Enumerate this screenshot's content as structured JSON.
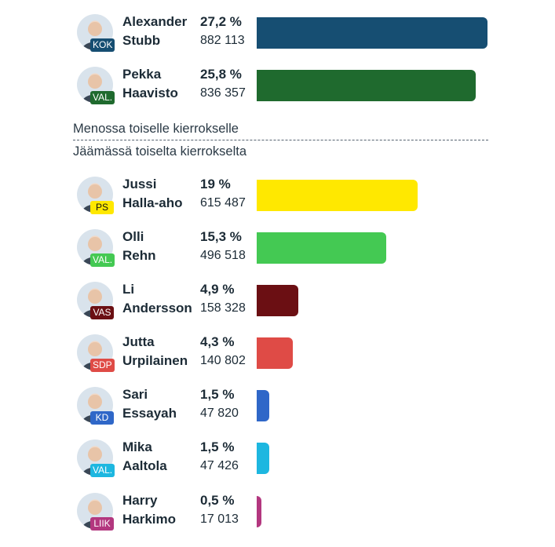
{
  "chart_data": {
    "type": "bar",
    "orientation": "horizontal",
    "max_value": 27.2,
    "rows": [
      {
        "first": "Alexander",
        "last": "Stubb",
        "party": "KOK",
        "party_color": "#164e72",
        "pct": 27.2,
        "pct_label": "27,2 %",
        "votes": "882 113"
      },
      {
        "first": "Pekka",
        "last": "Haavisto",
        "party": "VAL.",
        "party_color": "#1f6a2e",
        "pct": 25.8,
        "pct_label": "25,8 %",
        "votes": "836 357"
      },
      {
        "first": "Jussi",
        "last": "Halla-aho",
        "party": "PS",
        "party_color": "#ffe800",
        "pct": 19,
        "pct_label": "19 %",
        "votes": "615 487"
      },
      {
        "first": "Olli",
        "last": "Rehn",
        "party": "VAL.",
        "party_color": "#44c953",
        "pct": 15.3,
        "pct_label": "15,3 %",
        "votes": "496 518"
      },
      {
        "first": "Li",
        "last": "Andersson",
        "party": "VAS",
        "party_color": "#6b0f13",
        "pct": 4.9,
        "pct_label": "4,9 %",
        "votes": "158 328"
      },
      {
        "first": "Jutta",
        "last": "Urpilainen",
        "party": "SDP",
        "party_color": "#df4b46",
        "pct": 4.3,
        "pct_label": "4,3 %",
        "votes": "140 802"
      },
      {
        "first": "Sari",
        "last": "Essayah",
        "party": "KD",
        "party_color": "#2f67c8",
        "pct": 1.5,
        "pct_label": "1,5 %",
        "votes": "47 820"
      },
      {
        "first": "Mika",
        "last": "Aaltola",
        "party": "VAL.",
        "party_color": "#1db7e0",
        "pct": 1.5,
        "pct_label": "1,5 %",
        "votes": "47 426"
      },
      {
        "first": "Harry",
        "last": "Harkimo",
        "party": "LIIK",
        "party_color": "#b3377f",
        "pct": 0.5,
        "pct_label": "0,5 %",
        "votes": "17 013"
      }
    ],
    "advancing_label": "Menossa toiselle kierrokselle",
    "eliminated_label": "Jäämässä toiselta kierrokselta"
  }
}
